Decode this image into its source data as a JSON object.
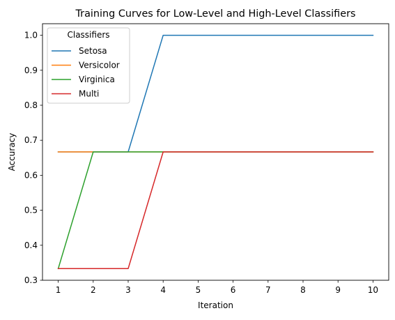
{
  "chart_data": {
    "type": "line",
    "title": "Training Curves for Low-Level and High-Level Classifiers",
    "xlabel": "Iteration",
    "ylabel": "Accuracy",
    "x": [
      1,
      2,
      3,
      4,
      5,
      6,
      7,
      8,
      9,
      10
    ],
    "xticks": [
      1,
      2,
      3,
      4,
      5,
      6,
      7,
      8,
      9,
      10
    ],
    "yticks": [
      0.3,
      0.4,
      0.5,
      0.6,
      0.7,
      0.8,
      0.9,
      1.0
    ],
    "xlim": [
      0.55,
      10.45
    ],
    "ylim": [
      0.3,
      1.033
    ],
    "grid": false,
    "legend": {
      "title": "Classifiers",
      "placement": "top-left"
    },
    "series": [
      {
        "name": "Setosa",
        "color": "#1f77b4",
        "values": [
          0.6667,
          0.6667,
          0.6667,
          1.0,
          1.0,
          1.0,
          1.0,
          1.0,
          1.0,
          1.0
        ]
      },
      {
        "name": "Versicolor",
        "color": "#ff7f0e",
        "values": [
          0.6667,
          0.6667,
          0.6667,
          0.6667,
          0.6667,
          0.6667,
          0.6667,
          0.6667,
          0.6667,
          0.6667
        ]
      },
      {
        "name": "Virginica",
        "color": "#2ca02c",
        "values": [
          0.3333,
          0.6667,
          0.6667,
          0.6667,
          0.6667,
          0.6667,
          0.6667,
          0.6667,
          0.6667,
          0.6667
        ]
      },
      {
        "name": "Multi",
        "color": "#d62728",
        "values": [
          0.3333,
          0.3333,
          0.3333,
          0.6667,
          0.6667,
          0.6667,
          0.6667,
          0.6667,
          0.6667,
          0.6667
        ]
      }
    ]
  }
}
